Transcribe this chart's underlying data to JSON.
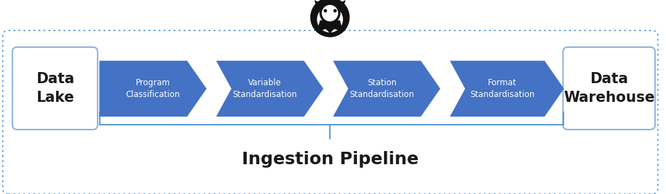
{
  "bg_color": "#ffffff",
  "outer_box_color": "#5b9bd5",
  "outer_box_bg": "#ffffff",
  "arrow_fill": "#4472c4",
  "arrow_edge": "#4472c4",
  "box_edge": "#8db3d9",
  "box_fill": "#ffffff",
  "text_white": "#ffffff",
  "text_dark": "#1a1a1a",
  "text_pipeline": "#1a1a1a",
  "arrow_labels": [
    "Program\nClassification",
    "Variable\nStandardisation",
    "Station\nStandardisation",
    "Format\nStandardisation"
  ],
  "left_box_label": "Data\nLake",
  "right_box_label": "Data\nWarehouse",
  "pipeline_label": "Ingestion Pipeline"
}
